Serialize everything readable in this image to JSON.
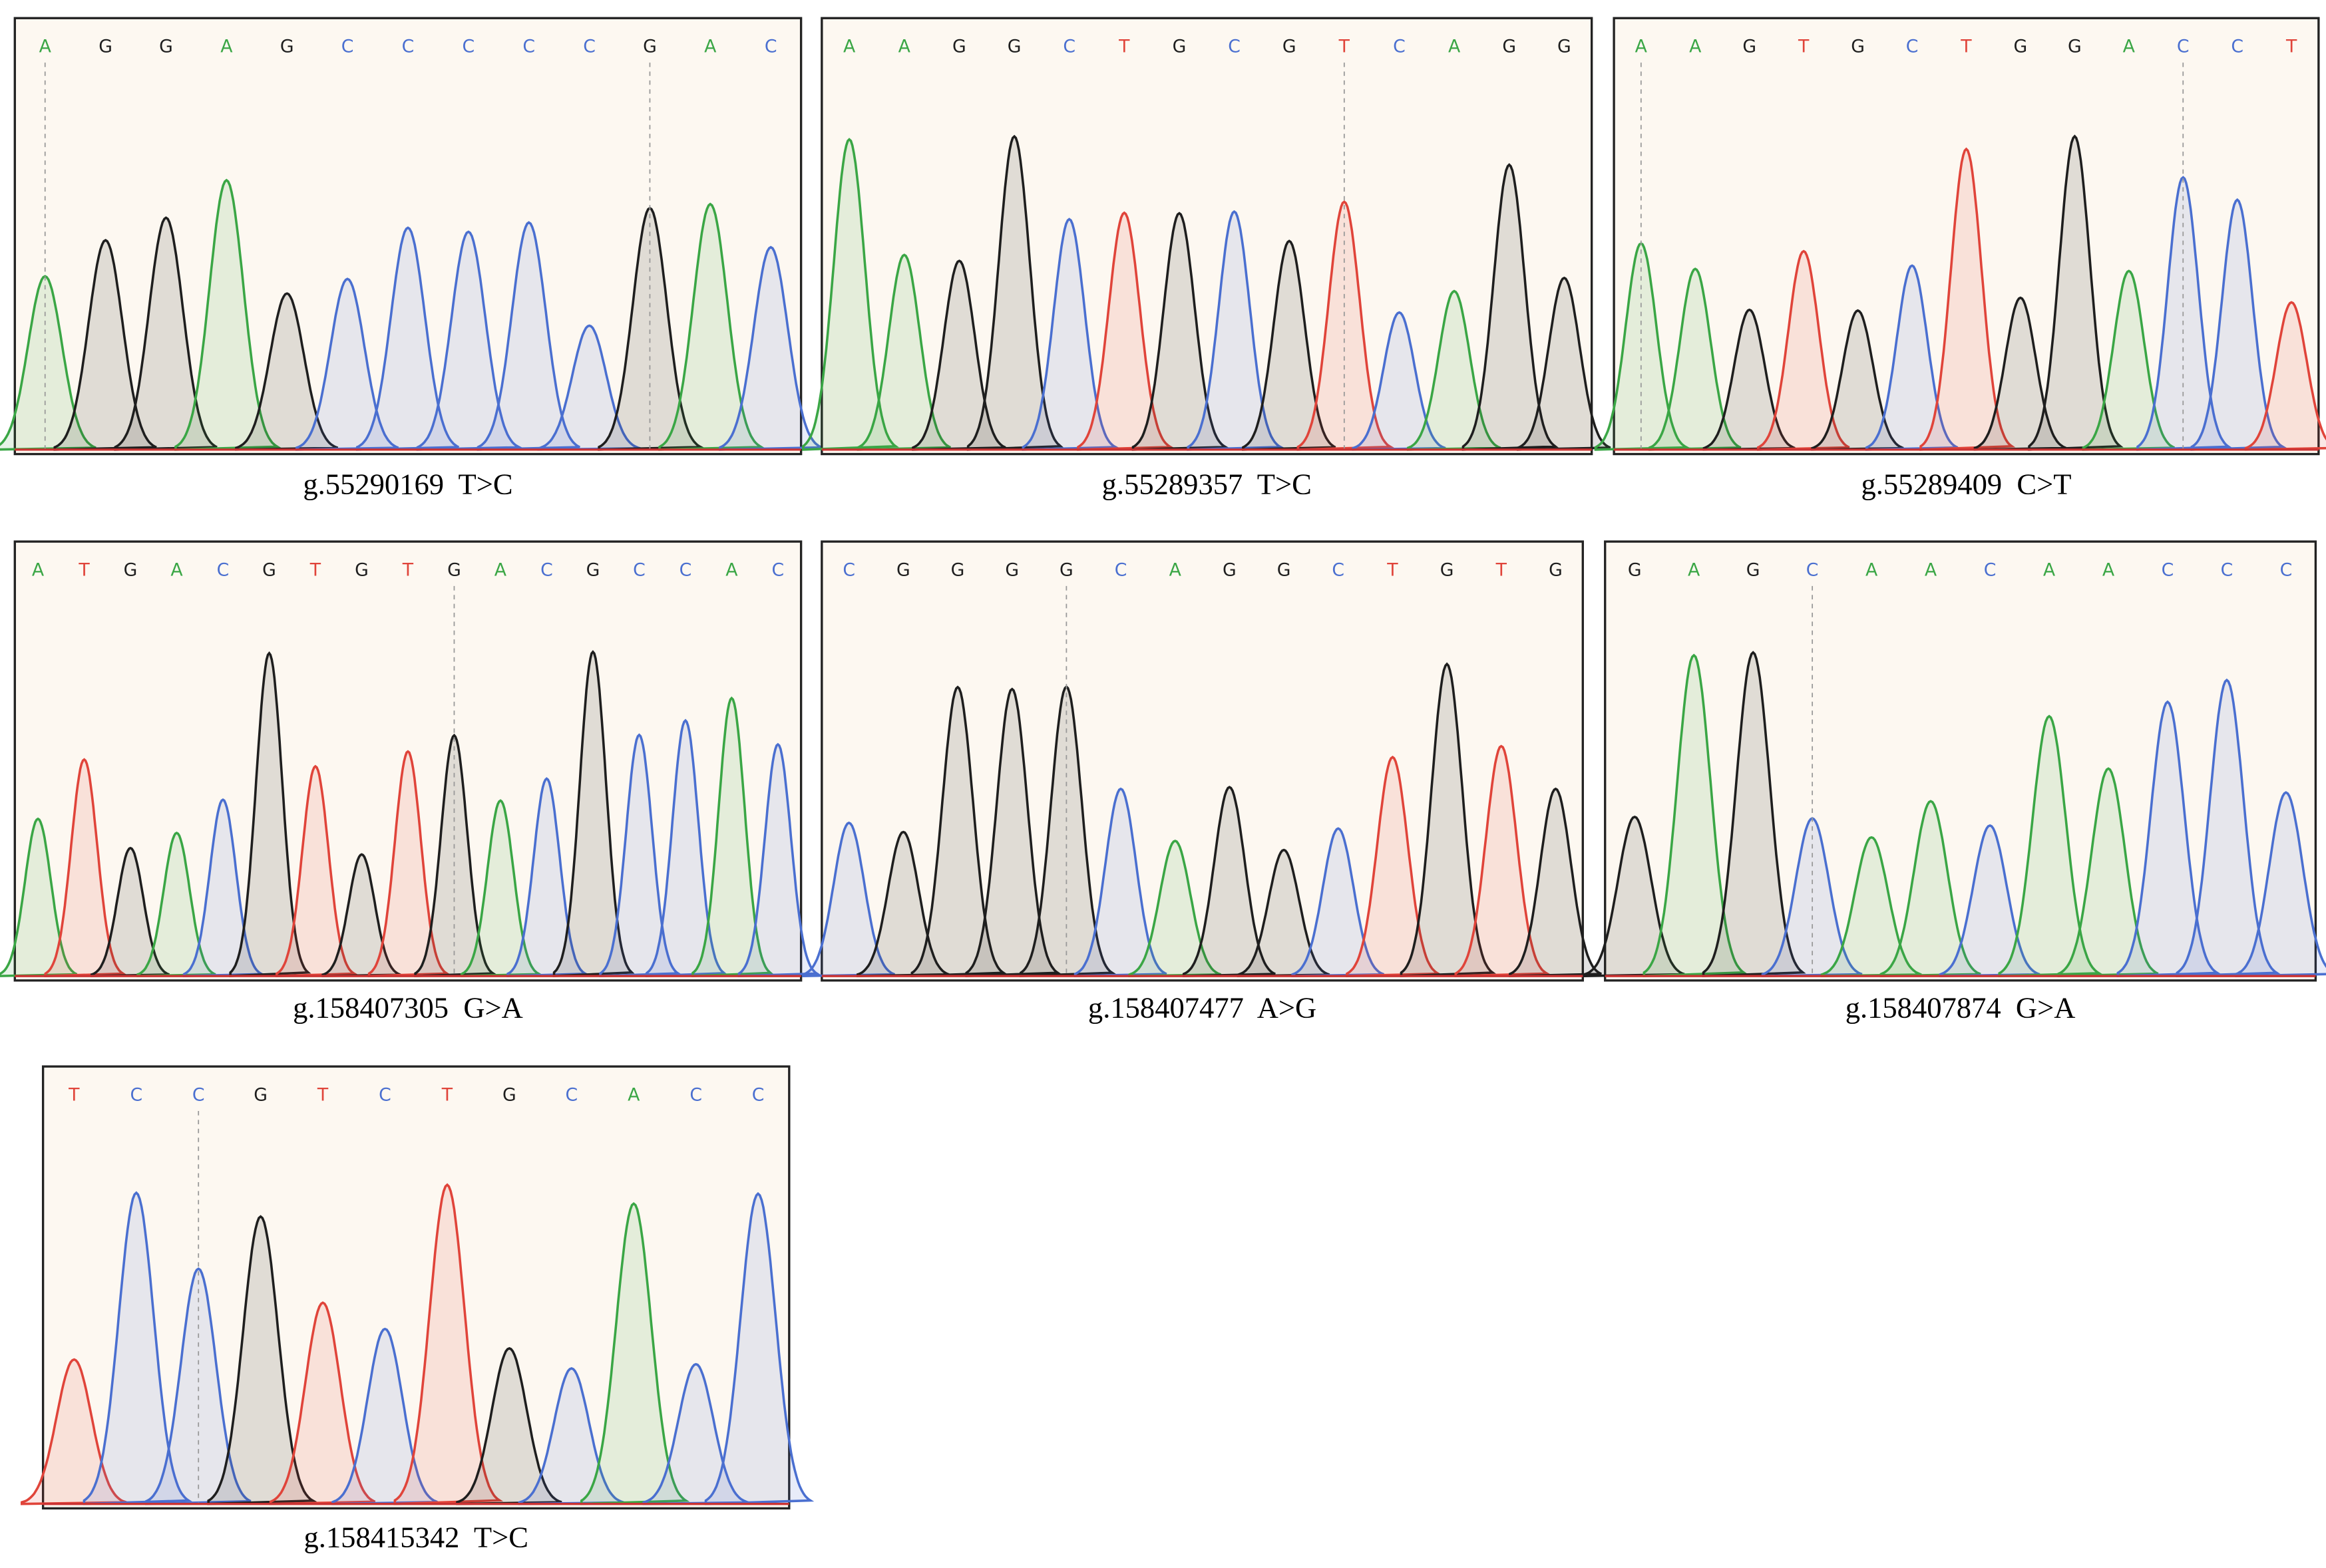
{
  "base_colors": {
    "A": "#3aa645",
    "C": "#4a6fd0",
    "G": "#1e1e1e",
    "T": "#e0443a"
  },
  "panels": [
    {
      "bases": [
        "A",
        "G",
        "G",
        "A",
        "G",
        "C",
        "C",
        "C",
        "C",
        "C",
        "G",
        "A",
        "C"
      ],
      "caption": "g.55290169  T>C"
    },
    {
      "bases": [
        "A",
        "A",
        "G",
        "G",
        "C",
        "T",
        "G",
        "C",
        "G",
        "T",
        "C",
        "A",
        "G",
        "G"
      ],
      "caption": "g.55289357  T>C"
    },
    {
      "bases": [
        "A",
        "A",
        "G",
        "T",
        "G",
        "C",
        "T",
        "G",
        "G",
        "A",
        "C",
        "C",
        "T"
      ],
      "caption": "g.55289409  C>T"
    },
    {
      "bases": [
        "A",
        "T",
        "G",
        "A",
        "C",
        "G",
        "T",
        "G",
        "T",
        "G",
        "A",
        "C",
        "G",
        "C",
        "C",
        "A",
        "C"
      ],
      "caption": "g.158407305  G>A"
    },
    {
      "bases": [
        "C",
        "G",
        "G",
        "G",
        "G",
        "C",
        "A",
        "G",
        "G",
        "C",
        "T",
        "G",
        "T",
        "G"
      ],
      "caption": "g.158407477  A>G"
    },
    {
      "bases": [
        "G",
        "A",
        "G",
        "C",
        "A",
        "A",
        "C",
        "A",
        "A",
        "C",
        "C",
        "C"
      ],
      "caption": "g.158407874  G>A"
    },
    {
      "bases": [
        "T",
        "C",
        "C",
        "G",
        "T",
        "C",
        "T",
        "G",
        "C",
        "A",
        "C",
        "C"
      ],
      "caption": "g.158415342  T>C"
    }
  ]
}
